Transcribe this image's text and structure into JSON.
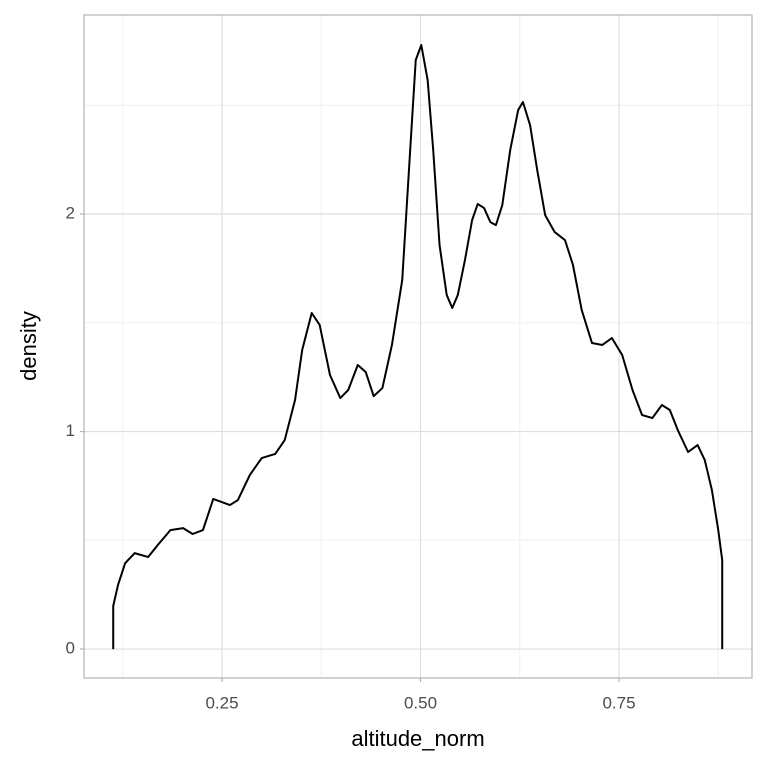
{
  "chart_data": {
    "type": "area-line",
    "x_label": "altitude_norm",
    "y_label": "density",
    "x": [
      0.113,
      0.113,
      0.119,
      0.128,
      0.14,
      0.157,
      0.169,
      0.185,
      0.201,
      0.213,
      0.226,
      0.239,
      0.26,
      0.27,
      0.285,
      0.3,
      0.317,
      0.329,
      0.342,
      0.351,
      0.363,
      0.373,
      0.386,
      0.399,
      0.409,
      0.421,
      0.431,
      0.441,
      0.452,
      0.464,
      0.477,
      0.487,
      0.494,
      0.501,
      0.509,
      0.516,
      0.524,
      0.533,
      0.54,
      0.547,
      0.556,
      0.565,
      0.572,
      0.58,
      0.588,
      0.595,
      0.603,
      0.613,
      0.623,
      0.629,
      0.638,
      0.647,
      0.657,
      0.669,
      0.682,
      0.692,
      0.703,
      0.716,
      0.729,
      0.741,
      0.754,
      0.767,
      0.779,
      0.792,
      0.804,
      0.814,
      0.824,
      0.837,
      0.849,
      0.858,
      0.867,
      0.875,
      0.88,
      0.88
    ],
    "series": [
      {
        "color": "#000000",
        "values": [
          0,
          0.198,
          0.294,
          0.395,
          0.441,
          0.423,
          0.478,
          0.547,
          0.556,
          0.529,
          0.547,
          0.69,
          0.662,
          0.685,
          0.8,
          0.878,
          0.897,
          0.961,
          1.145,
          1.375,
          1.545,
          1.49,
          1.26,
          1.154,
          1.191,
          1.306,
          1.274,
          1.163,
          1.2,
          1.398,
          1.697,
          2.294,
          2.708,
          2.777,
          2.616,
          2.294,
          1.857,
          1.628,
          1.568,
          1.628,
          1.789,
          1.972,
          2.046,
          2.028,
          1.963,
          1.949,
          2.041,
          2.294,
          2.478,
          2.515,
          2.409,
          2.202,
          1.995,
          1.917,
          1.88,
          1.766,
          1.559,
          1.407,
          1.398,
          1.43,
          1.352,
          1.191,
          1.076,
          1.062,
          1.122,
          1.099,
          1.007,
          0.906,
          0.938,
          0.869,
          0.731,
          0.547,
          0.409,
          0
        ]
      }
    ],
    "xlim": [
      0.0762,
      0.9175
    ],
    "ylim": [
      -0.133,
      2.915
    ],
    "xticks": [
      0.25,
      {
        "value": 0.5,
        "label": "0.50"
      },
      0.75
    ],
    "yticks": [
      0,
      1,
      2
    ],
    "x_minor_grid": [
      0.125,
      0.375,
      0.625,
      0.875
    ],
    "y_minor_grid": [
      0.5,
      1.5,
      2.5
    ],
    "grid": true
  }
}
